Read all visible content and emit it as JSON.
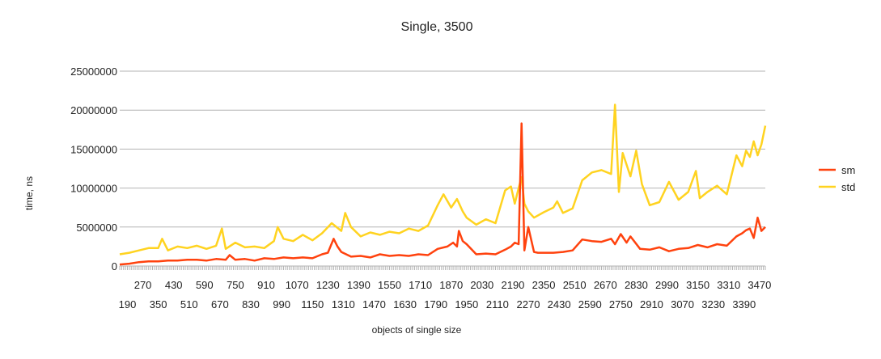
{
  "chart_data": {
    "type": "line",
    "title": "Single, 3500",
    "xlabel": "objects of single size",
    "ylabel": "time, ns",
    "ylim": [
      0,
      25000000
    ],
    "yticks": [
      0,
      5000000,
      10000000,
      15000000,
      20000000,
      25000000
    ],
    "xrange": [
      150,
      3500
    ],
    "xtick_step": 10,
    "grid": true,
    "legend_position": "right",
    "xtick_labels_row1": [
      "270",
      "430",
      "590",
      "750",
      "910",
      "1070",
      "1230",
      "1390",
      "1550",
      "1710",
      "1870",
      "2030",
      "2190",
      "2350",
      "2510",
      "2670",
      "2830",
      "2990",
      "3150",
      "3310",
      "3470"
    ],
    "xtick_labels_row2": [
      "190",
      "350",
      "510",
      "670",
      "830",
      "990",
      "1150",
      "1310",
      "1470",
      "1630",
      "1790",
      "1950",
      "2110",
      "2270",
      "2430",
      "2590",
      "2750",
      "2910",
      "3070",
      "3230",
      "3390"
    ],
    "series": [
      {
        "name": "sm",
        "color": "#ff420e",
        "x": [
          150,
          200,
          250,
          300,
          350,
          400,
          450,
          500,
          550,
          600,
          650,
          700,
          720,
          750,
          800,
          850,
          900,
          950,
          1000,
          1050,
          1100,
          1150,
          1200,
          1230,
          1260,
          1280,
          1300,
          1350,
          1400,
          1450,
          1500,
          1550,
          1600,
          1650,
          1700,
          1750,
          1800,
          1850,
          1880,
          1900,
          1910,
          1930,
          1950,
          2000,
          2050,
          2100,
          2150,
          2180,
          2200,
          2220,
          2235,
          2250,
          2270,
          2300,
          2320,
          2350,
          2400,
          2450,
          2500,
          2550,
          2600,
          2650,
          2700,
          2720,
          2750,
          2780,
          2800,
          2850,
          2900,
          2950,
          3000,
          3050,
          3100,
          3150,
          3200,
          3250,
          3300,
          3350,
          3380,
          3400,
          3420,
          3440,
          3460,
          3480,
          3500
        ],
        "values": [
          200000,
          300000,
          500000,
          600000,
          600000,
          700000,
          700000,
          800000,
          800000,
          700000,
          900000,
          800000,
          1400000,
          800000,
          900000,
          700000,
          1000000,
          900000,
          1100000,
          1000000,
          1100000,
          1000000,
          1500000,
          1700000,
          3500000,
          2500000,
          1800000,
          1200000,
          1300000,
          1100000,
          1500000,
          1300000,
          1400000,
          1300000,
          1500000,
          1400000,
          2200000,
          2500000,
          3000000,
          2500000,
          4500000,
          3200000,
          2800000,
          1500000,
          1600000,
          1500000,
          2100000,
          2500000,
          3000000,
          2800000,
          18300000,
          2000000,
          5000000,
          1800000,
          1700000,
          1700000,
          1700000,
          1800000,
          2000000,
          3400000,
          3200000,
          3100000,
          3500000,
          2800000,
          4100000,
          3000000,
          3800000,
          2200000,
          2100000,
          2400000,
          1900000,
          2200000,
          2300000,
          2700000,
          2400000,
          2800000,
          2600000,
          3800000,
          4200000,
          4600000,
          4800000,
          3600000,
          6200000,
          4500000,
          5000000
        ]
      },
      {
        "name": "std",
        "color": "#ffd320",
        "x": [
          150,
          200,
          250,
          300,
          350,
          370,
          400,
          450,
          500,
          550,
          600,
          650,
          680,
          700,
          750,
          800,
          850,
          900,
          950,
          970,
          1000,
          1050,
          1100,
          1150,
          1200,
          1250,
          1300,
          1320,
          1350,
          1400,
          1450,
          1500,
          1550,
          1600,
          1650,
          1700,
          1750,
          1800,
          1830,
          1870,
          1900,
          1930,
          1950,
          2000,
          2050,
          2100,
          2150,
          2180,
          2200,
          2220,
          2235,
          2250,
          2270,
          2300,
          2350,
          2400,
          2420,
          2450,
          2500,
          2550,
          2600,
          2650,
          2700,
          2720,
          2740,
          2760,
          2800,
          2830,
          2860,
          2900,
          2950,
          3000,
          3050,
          3100,
          3140,
          3160,
          3200,
          3250,
          3300,
          3350,
          3380,
          3400,
          3420,
          3440,
          3460,
          3480,
          3500
        ],
        "values": [
          1500000,
          1700000,
          2000000,
          2300000,
          2300000,
          3500000,
          2000000,
          2500000,
          2300000,
          2600000,
          2200000,
          2600000,
          4800000,
          2200000,
          3000000,
          2400000,
          2500000,
          2300000,
          3200000,
          5000000,
          3500000,
          3200000,
          4000000,
          3300000,
          4200000,
          5500000,
          4500000,
          6800000,
          5000000,
          3800000,
          4300000,
          4000000,
          4400000,
          4200000,
          4800000,
          4500000,
          5200000,
          7800000,
          9200000,
          7500000,
          8600000,
          7000000,
          6200000,
          5300000,
          6000000,
          5500000,
          9700000,
          10200000,
          8000000,
          10000000,
          11400000,
          8000000,
          7000000,
          6200000,
          6900000,
          7500000,
          8300000,
          6800000,
          7400000,
          11000000,
          12000000,
          12300000,
          11800000,
          20700000,
          9500000,
          14500000,
          11500000,
          14800000,
          10500000,
          7800000,
          8200000,
          10800000,
          8500000,
          9500000,
          12200000,
          8700000,
          9500000,
          10300000,
          9200000,
          14200000,
          12800000,
          14800000,
          14000000,
          16000000,
          14200000,
          15600000,
          18000000
        ]
      }
    ]
  }
}
